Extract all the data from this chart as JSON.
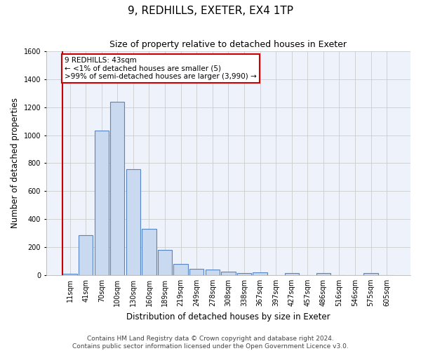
{
  "title": "9, REDHILLS, EXETER, EX4 1TP",
  "subtitle": "Size of property relative to detached houses in Exeter",
  "xlabel": "Distribution of detached houses by size in Exeter",
  "ylabel": "Number of detached properties",
  "bin_labels": [
    "11sqm",
    "41sqm",
    "70sqm",
    "100sqm",
    "130sqm",
    "160sqm",
    "189sqm",
    "219sqm",
    "249sqm",
    "278sqm",
    "308sqm",
    "338sqm",
    "367sqm",
    "397sqm",
    "427sqm",
    "457sqm",
    "486sqm",
    "516sqm",
    "546sqm",
    "575sqm",
    "605sqm"
  ],
  "bar_heights": [
    10,
    285,
    1035,
    1240,
    755,
    330,
    180,
    80,
    45,
    38,
    22,
    15,
    20,
    0,
    15,
    0,
    15,
    0,
    0,
    15,
    0
  ],
  "bar_color": "#c9d9f0",
  "bar_edgecolor": "#5585c5",
  "highlight_line_color": "#cc0000",
  "annotation_text": "9 REDHILLS: 43sqm\n← <1% of detached houses are smaller (5)\n>99% of semi-detached houses are larger (3,990) →",
  "annotation_box_edgecolor": "#cc0000",
  "ylim": [
    0,
    1600
  ],
  "yticks": [
    0,
    200,
    400,
    600,
    800,
    1000,
    1200,
    1400,
    1600
  ],
  "grid_color": "#cccccc",
  "background_color": "#eef2fa",
  "footer_line1": "Contains HM Land Registry data © Crown copyright and database right 2024.",
  "footer_line2": "Contains public sector information licensed under the Open Government Licence v3.0.",
  "title_fontsize": 11,
  "subtitle_fontsize": 9,
  "axis_label_fontsize": 8.5,
  "tick_fontsize": 7,
  "annotation_fontsize": 7.5,
  "footer_fontsize": 6.5
}
